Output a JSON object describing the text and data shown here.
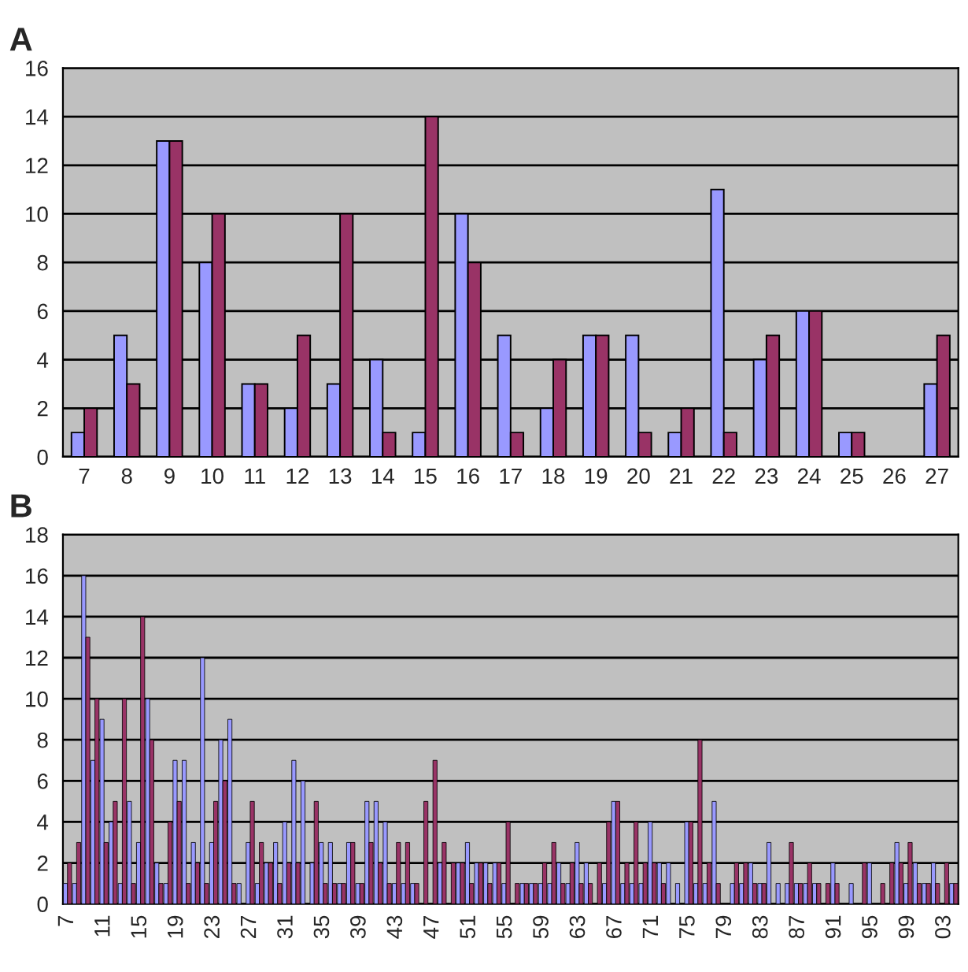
{
  "chart_data": [
    {
      "type": "bar",
      "title": "A",
      "categories": [
        "7",
        "8",
        "9",
        "10",
        "11",
        "12",
        "13",
        "14",
        "15",
        "16",
        "17",
        "18",
        "19",
        "20",
        "21",
        "22",
        "23",
        "24",
        "25",
        "26",
        "27"
      ],
      "ylim": [
        0,
        16
      ],
      "yticks": [
        0,
        2,
        4,
        6,
        8,
        10,
        12,
        14,
        16
      ],
      "grid": "y",
      "series": [
        {
          "color": "#9999ff",
          "values": [
            1,
            5,
            13,
            8,
            3,
            2,
            3,
            4,
            1,
            10,
            5,
            2,
            5,
            5,
            1,
            11,
            4,
            6,
            1,
            0,
            3
          ]
        },
        {
          "color": "#993366",
          "values": [
            2,
            3,
            13,
            10,
            3,
            5,
            10,
            1,
            14,
            8,
            1,
            4,
            5,
            1,
            2,
            1,
            5,
            6,
            1,
            0,
            5
          ]
        }
      ]
    },
    {
      "type": "bar",
      "title": "B",
      "categories": [
        "7",
        null,
        null,
        null,
        "11",
        null,
        null,
        null,
        "15",
        null,
        null,
        null,
        "19",
        null,
        null,
        null,
        "23",
        null,
        null,
        null,
        "27",
        null,
        null,
        null,
        "31",
        null,
        null,
        null,
        "35",
        null,
        null,
        null,
        "39",
        null,
        null,
        null,
        "43",
        null,
        null,
        null,
        "47",
        null,
        null,
        null,
        "51",
        null,
        null,
        null,
        "55",
        null,
        null,
        null,
        "59",
        null,
        null,
        null,
        "63",
        null,
        null,
        null,
        "67",
        null,
        null,
        null,
        "71",
        null,
        null,
        null,
        "75",
        null,
        null,
        null,
        "79",
        null,
        null,
        null,
        "83",
        null,
        null,
        null,
        "87",
        null,
        null,
        null,
        "91",
        null,
        null,
        null,
        "95",
        null,
        null,
        null,
        "99",
        null,
        null,
        null,
        "03",
        null
      ],
      "ylim": [
        0,
        18
      ],
      "yticks": [
        0,
        2,
        4,
        6,
        8,
        10,
        12,
        14,
        16,
        18
      ],
      "grid": "y",
      "series": [
        {
          "color": "#9999ff",
          "values": [
            1,
            1,
            16,
            7,
            9,
            4,
            1,
            5,
            3,
            10,
            2,
            1,
            7,
            7,
            3,
            12,
            3,
            8,
            9,
            1,
            3,
            1,
            2,
            3,
            4,
            7,
            6,
            2,
            3,
            3,
            1,
            3,
            1,
            5,
            5,
            4,
            1,
            1,
            1,
            0,
            0,
            2,
            0,
            2,
            3,
            2,
            2,
            2,
            1,
            0,
            1,
            1,
            1,
            1,
            2,
            1,
            3,
            2,
            0,
            1,
            5,
            1,
            1,
            1,
            4,
            2,
            2,
            1,
            4,
            1,
            1,
            5,
            0,
            1,
            1,
            2,
            1,
            3,
            1,
            1,
            1,
            1,
            1,
            0,
            2,
            0,
            1,
            0,
            2,
            0,
            0,
            3,
            1,
            2,
            1,
            2,
            0,
            1
          ]
        },
        {
          "color": "#993366",
          "values": [
            2,
            3,
            13,
            10,
            3,
            5,
            10,
            1,
            14,
            8,
            1,
            4,
            5,
            1,
            2,
            1,
            5,
            6,
            1,
            0,
            5,
            3,
            2,
            1,
            2,
            2,
            0,
            5,
            1,
            1,
            1,
            3,
            1,
            3,
            2,
            1,
            3,
            3,
            1,
            5,
            7,
            3,
            2,
            2,
            1,
            2,
            1,
            2,
            4,
            1,
            1,
            1,
            2,
            3,
            1,
            2,
            1,
            1,
            2,
            4,
            5,
            2,
            4,
            2,
            2,
            1,
            0,
            0,
            4,
            8,
            2,
            1,
            0,
            2,
            2,
            1,
            1,
            0,
            0,
            3,
            1,
            2,
            1,
            1,
            1,
            0,
            0,
            2,
            0,
            1,
            2,
            2,
            3,
            1,
            1,
            1,
            2,
            1
          ]
        }
      ]
    }
  ]
}
